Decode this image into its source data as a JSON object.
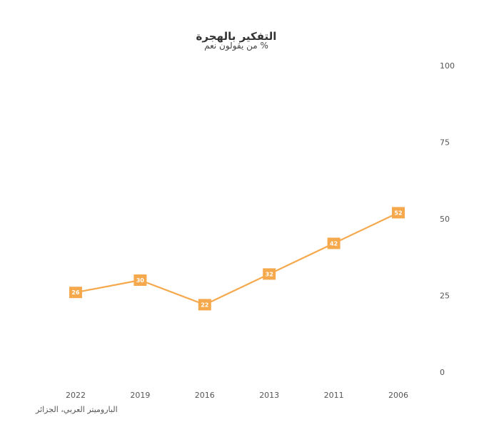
{
  "chart_data": {
    "type": "line",
    "title": "التفكير بالهجرة",
    "subtitle": "% من يقولون نعم",
    "source": "الباروميتر العربي، الجزائر",
    "x": [
      "2022",
      "2019",
      "2016",
      "2013",
      "2011",
      "2006"
    ],
    "series": [
      {
        "values": [
          26,
          30,
          22,
          32,
          42,
          52
        ]
      }
    ],
    "ylim": [
      0,
      100
    ],
    "yticks": [
      0,
      25,
      50,
      75,
      100
    ],
    "y_axis_position": "right",
    "grid": false,
    "color": "#F5A84C"
  }
}
